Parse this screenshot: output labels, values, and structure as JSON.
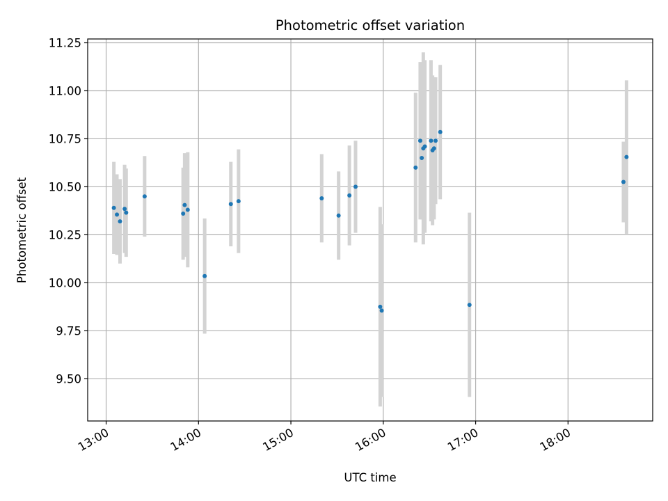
{
  "chart_data": {
    "type": "scatter",
    "title": "Photometric offset variation",
    "xlabel": "UTC time",
    "ylabel": "Photometric offset",
    "x_tick_labels": [
      "13:00",
      "14:00",
      "15:00",
      "16:00",
      "17:00",
      "18:00"
    ],
    "y_tick_labels": [
      "9.50",
      "9.75",
      "10.00",
      "10.25",
      "10.50",
      "10.75",
      "11.00",
      "11.25"
    ],
    "xlim": [
      "12:48",
      "18:55"
    ],
    "ylim": [
      9.28,
      11.27
    ],
    "grid": true,
    "legend": "none",
    "colors": {
      "point": "#1f77b4",
      "errorbar": "#d3d3d3",
      "grid": "#b0b0b0"
    },
    "points": [
      {
        "time": "13:05",
        "y": 10.39,
        "yerr": 0.24
      },
      {
        "time": "13:07",
        "y": 10.355,
        "yerr": 0.21
      },
      {
        "time": "13:09",
        "y": 10.32,
        "yerr": 0.22
      },
      {
        "time": "13:12",
        "y": 10.385,
        "yerr": 0.23
      },
      {
        "time": "13:13",
        "y": 10.365,
        "yerr": 0.23
      },
      {
        "time": "13:25",
        "y": 10.45,
        "yerr": 0.21
      },
      {
        "time": "13:50",
        "y": 10.36,
        "yerr": 0.24
      },
      {
        "time": "13:51",
        "y": 10.405,
        "yerr": 0.27
      },
      {
        "time": "13:53",
        "y": 10.38,
        "yerr": 0.3
      },
      {
        "time": "14:04",
        "y": 10.035,
        "yerr": 0.3
      },
      {
        "time": "14:21",
        "y": 10.41,
        "yerr": 0.22
      },
      {
        "time": "14:26",
        "y": 10.425,
        "yerr": 0.27
      },
      {
        "time": "15:20",
        "y": 10.44,
        "yerr": 0.23
      },
      {
        "time": "15:31",
        "y": 10.35,
        "yerr": 0.23
      },
      {
        "time": "15:38",
        "y": 10.455,
        "yerr": 0.26
      },
      {
        "time": "15:42",
        "y": 10.5,
        "yerr": 0.24
      },
      {
        "time": "15:58",
        "y": 9.875,
        "yerr": 0.52
      },
      {
        "time": "15:59",
        "y": 9.855,
        "yerr": 0.45
      },
      {
        "time": "16:21",
        "y": 10.6,
        "yerr": 0.39
      },
      {
        "time": "16:24",
        "y": 10.74,
        "yerr": 0.41
      },
      {
        "time": "16:25",
        "y": 10.65,
        "yerr": 0.32
      },
      {
        "time": "16:26",
        "y": 10.7,
        "yerr": 0.5
      },
      {
        "time": "16:27",
        "y": 10.71,
        "yerr": 0.45
      },
      {
        "time": "16:31",
        "y": 10.74,
        "yerr": 0.42
      },
      {
        "time": "16:32",
        "y": 10.69,
        "yerr": 0.39
      },
      {
        "time": "16:33",
        "y": 10.7,
        "yerr": 0.37
      },
      {
        "time": "16:34",
        "y": 10.74,
        "yerr": 0.33
      },
      {
        "time": "16:37",
        "y": 10.785,
        "yerr": 0.35
      },
      {
        "time": "16:56",
        "y": 9.885,
        "yerr": 0.48
      },
      {
        "time": "18:36",
        "y": 10.525,
        "yerr": 0.21
      },
      {
        "time": "18:38",
        "y": 10.655,
        "yerr": 0.4
      }
    ]
  }
}
